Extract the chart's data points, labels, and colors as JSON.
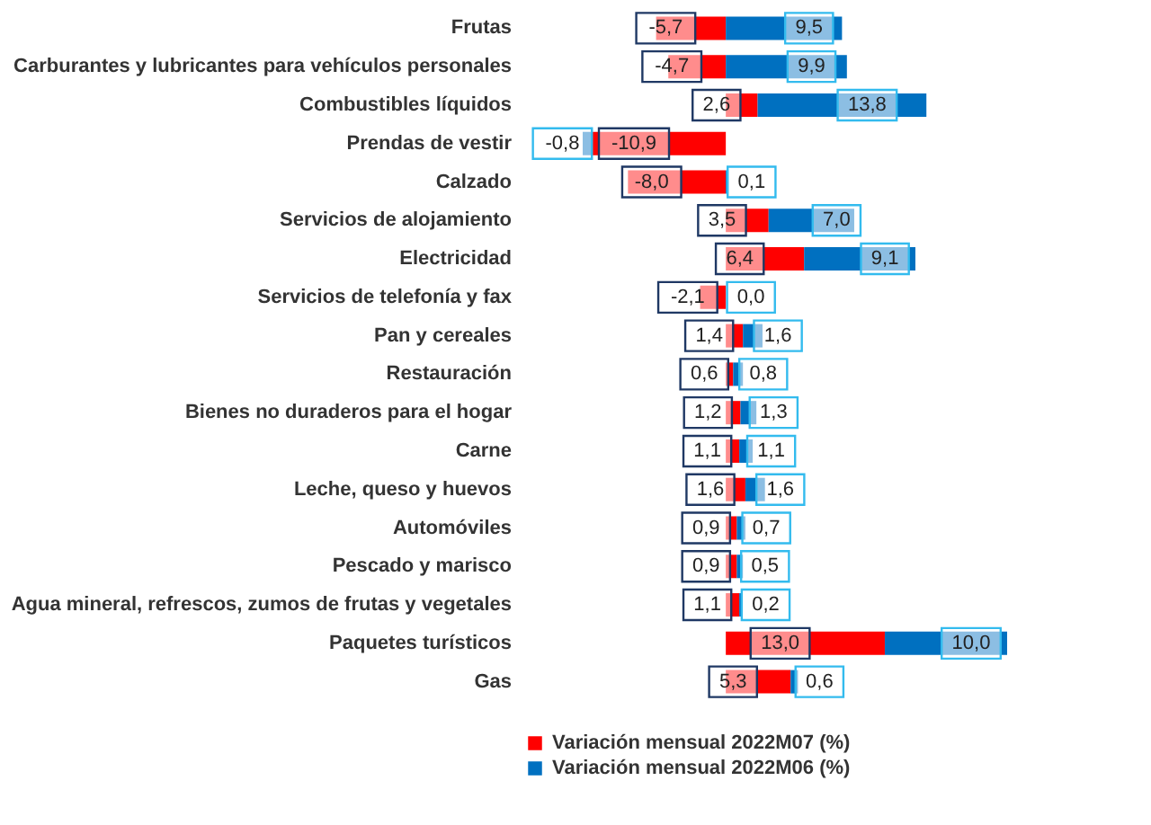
{
  "chart_data": {
    "type": "bar",
    "orientation": "horizontal",
    "stacked": true,
    "legend": "bottom left",
    "categories": [
      "Frutas",
      "Carburantes y lubricantes para vehículos personales",
      "Combustibles líquidos",
      "Prendas de vestir",
      "Calzado",
      "Servicios de alojamiento",
      "Electricidad",
      "Servicios de telefonía y fax",
      "Pan y cereales",
      "Restauración",
      "Bienes no duraderos para el hogar",
      "Carne",
      "Leche, queso y huevos",
      "Automóviles",
      "Pescado y marisco",
      "Agua mineral, refrescos, zumos de frutas y vegetales",
      "Paquetes turísticos",
      "Gas"
    ],
    "series": [
      {
        "name": "Variación mensual 2022M07 (%)",
        "color": "#ff0000",
        "values": [
          -5.7,
          -4.7,
          2.6,
          -10.9,
          -8.0,
          3.5,
          6.4,
          -2.1,
          1.4,
          0.6,
          1.2,
          1.1,
          1.6,
          0.9,
          0.9,
          1.1,
          13.0,
          5.3
        ],
        "value_labels": [
          "-5,7",
          "-4,7",
          "2,6",
          "-10,9",
          "-8,0",
          "3,5",
          "6,4",
          "-2,1",
          "1,4",
          "0,6",
          "1,2",
          "1,1",
          "1,6",
          "0,9",
          "0,9",
          "1,1",
          "13,0",
          "5,3"
        ]
      },
      {
        "name": "Variación mensual 2022M06 (%)",
        "color": "#0070c0",
        "values": [
          9.5,
          9.9,
          13.8,
          -0.8,
          0.1,
          7.0,
          9.1,
          0.0,
          1.6,
          0.8,
          1.3,
          1.1,
          1.6,
          0.7,
          0.5,
          0.2,
          10.0,
          0.6
        ],
        "value_labels": [
          "9,5",
          "9,9",
          "13,8",
          "-0,8",
          "0,1",
          "7,0",
          "9,1",
          "0,0",
          "1,6",
          "0,8",
          "1,3",
          "1,1",
          "1,6",
          "0,7",
          "0,5",
          "0,2",
          "10,0",
          "0,6"
        ]
      }
    ]
  }
}
